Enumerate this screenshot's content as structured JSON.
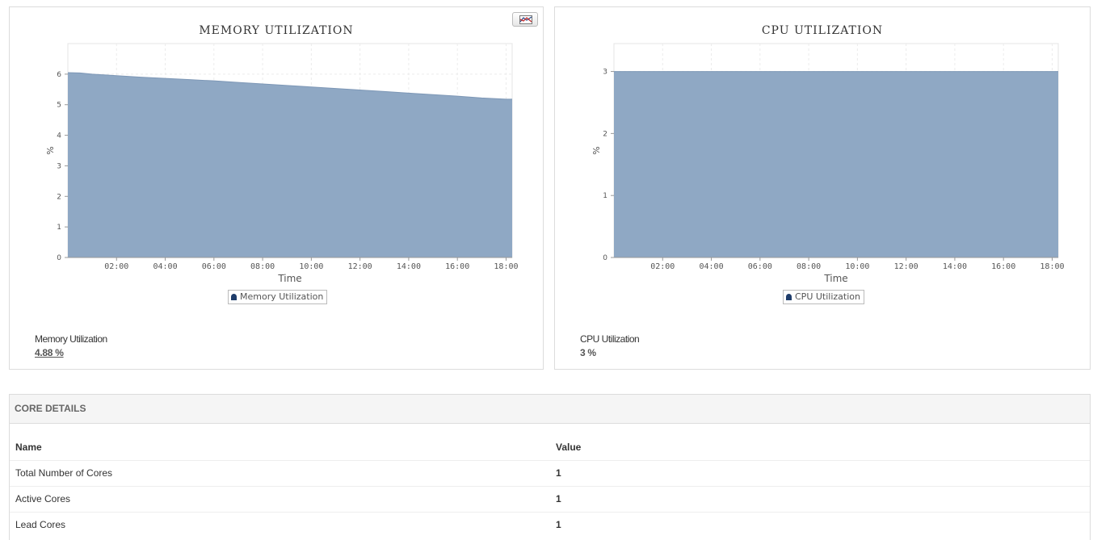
{
  "memory_panel": {
    "title": "MEMORY UTILIZATION",
    "legend_label": "Memory Utilization",
    "summary_label": "Memory Utilization",
    "summary_value": "4.88 %",
    "chart_type_icon": "line-chart-icon"
  },
  "cpu_panel": {
    "title": "CPU UTILIZATION",
    "legend_label": "CPU Utilization",
    "summary_label": "CPU Utilization",
    "summary_value": "3 %"
  },
  "chart_data": [
    {
      "type": "area",
      "title": "MEMORY UTILIZATION",
      "xlabel": "Time",
      "ylabel": "%",
      "x_ticks": [
        "02:00",
        "04:00",
        "06:00",
        "08:00",
        "10:00",
        "12:00",
        "14:00",
        "16:00",
        "18:00"
      ],
      "y_ticks": [
        0,
        1,
        2,
        3,
        4,
        5,
        6
      ],
      "xlim": [
        0.0,
        18.25
      ],
      "ylim": [
        0,
        7
      ],
      "grid": true,
      "legend_position": "bottom",
      "color": "#8fa8c4",
      "series": [
        {
          "name": "Memory Utilization",
          "x": [
            0,
            0.5,
            1,
            2,
            3,
            4,
            5,
            6,
            7,
            8,
            9,
            10,
            11,
            12,
            13,
            14,
            15,
            16,
            17,
            18,
            18.25
          ],
          "y": [
            6.05,
            6.04,
            6.0,
            5.95,
            5.9,
            5.86,
            5.82,
            5.78,
            5.73,
            5.68,
            5.63,
            5.58,
            5.53,
            5.48,
            5.43,
            5.38,
            5.33,
            5.28,
            5.22,
            5.18,
            5.18
          ]
        }
      ]
    },
    {
      "type": "area",
      "title": "CPU UTILIZATION",
      "xlabel": "Time",
      "ylabel": "%",
      "x_ticks": [
        "02:00",
        "04:00",
        "06:00",
        "08:00",
        "10:00",
        "12:00",
        "14:00",
        "16:00",
        "18:00"
      ],
      "y_ticks": [
        0,
        1,
        2,
        3
      ],
      "xlim": [
        0.0,
        18.25
      ],
      "ylim": [
        0,
        3.45
      ],
      "grid": true,
      "legend_position": "bottom",
      "color": "#8fa8c4",
      "series": [
        {
          "name": "CPU Utilization",
          "x": [
            0,
            18.25
          ],
          "y": [
            3,
            3
          ]
        }
      ]
    }
  ],
  "core_details": {
    "title": "CORE DETAILS",
    "columns": [
      "Name",
      "Value"
    ],
    "rows": [
      {
        "name": "Total Number of Cores",
        "value": "1"
      },
      {
        "name": "Active Cores",
        "value": "1"
      },
      {
        "name": "Lead Cores",
        "value": "1"
      }
    ]
  }
}
